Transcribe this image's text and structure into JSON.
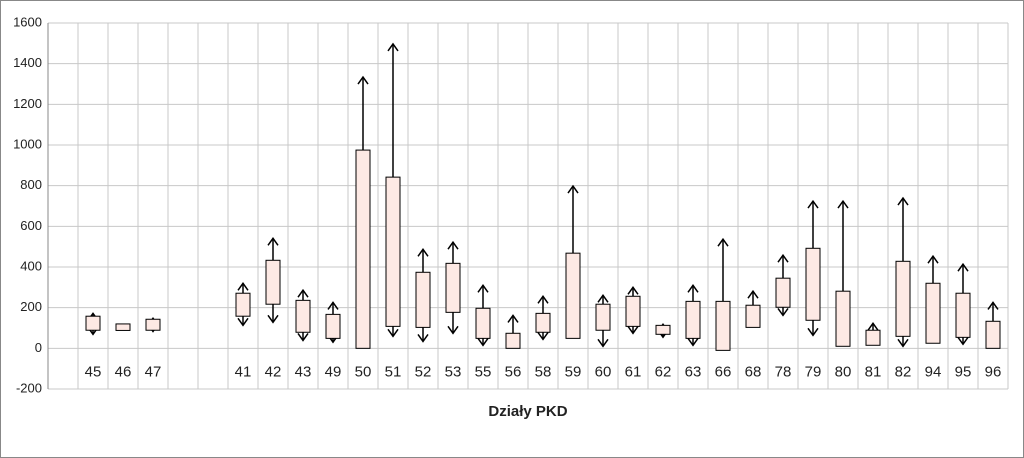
{
  "chart_data": {
    "type": "range-arrows",
    "x_label": "Działy PKD",
    "categories": [
      null,
      "45",
      "46",
      "47",
      null,
      null,
      "41",
      "42",
      "43",
      "49",
      "50",
      "51",
      "52",
      "53",
      "55",
      "56",
      "58",
      "59",
      "60",
      "61",
      "62",
      "63",
      "66",
      "68",
      "78",
      "79",
      "80",
      "81",
      "82",
      "94",
      "95",
      "96"
    ],
    "box_low": [
      null,
      89,
      88,
      89,
      null,
      null,
      158,
      217,
      79,
      49,
      0,
      108,
      103,
      177,
      49,
      0,
      79,
      49,
      89,
      108,
      69,
      49,
      -10,
      103,
      202,
      138,
      10,
      15,
      59,
      25,
      54,
      0
    ],
    "box_high": [
      null,
      158,
      120,
      143,
      null,
      null,
      271,
      433,
      236,
      167,
      975,
      842,
      374,
      418,
      197,
      74,
      172,
      468,
      217,
      256,
      113,
      231,
      231,
      212,
      345,
      492,
      281,
      89,
      428,
      320,
      271,
      133
    ],
    "whisker_high": [
      null,
      172,
      null,
      148,
      null,
      null,
      320,
      541,
      286,
      226,
      1334,
      1497,
      487,
      522,
      310,
      162,
      256,
      798,
      261,
      300,
      118,
      310,
      537,
      281,
      458,
      724,
      724,
      123,
      739,
      453,
      414,
      226
    ],
    "whisker_low": [
      null,
      69,
      null,
      83,
      null,
      null,
      113,
      128,
      39,
      30,
      null,
      59,
      34,
      74,
      15,
      null,
      44,
      null,
      10,
      74,
      55,
      15,
      null,
      null,
      162,
      64,
      null,
      null,
      10,
      null,
      20,
      null
    ],
    "box_color": "#fde9e4",
    "ylim": [
      -200,
      1600
    ],
    "yticks": [
      -200,
      0,
      200,
      400,
      600,
      800,
      1000,
      1200,
      1400,
      1600
    ],
    "grid": true
  }
}
